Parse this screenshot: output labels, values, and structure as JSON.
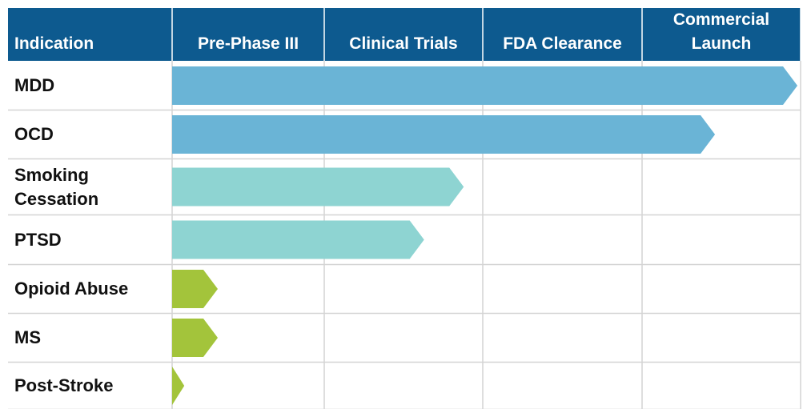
{
  "chart_data": {
    "type": "bar",
    "orientation": "horizontal",
    "category_header": "Indication",
    "stages": [
      "Pre-Phase III",
      "Clinical Trials",
      "FDA Clearance",
      "Commercial Launch"
    ],
    "categories": [
      "MDD",
      "OCD",
      "Smoking Cessation",
      "PTSD",
      "Opioid Abuse",
      "MS",
      "Post-Stroke"
    ],
    "values": [
      3.98,
      3.46,
      1.88,
      1.63,
      0.3,
      0.3,
      0.08
    ],
    "colors": [
      "#6ab4d6",
      "#6ab4d6",
      "#8ed4d2",
      "#8ed4d2",
      "#a3c43b",
      "#a3c43b",
      "#a3c43b"
    ],
    "xlim": [
      0,
      4
    ],
    "xticks": [
      0,
      1,
      2,
      3,
      4
    ],
    "grid": true,
    "header_color": "#0d5a8f"
  }
}
